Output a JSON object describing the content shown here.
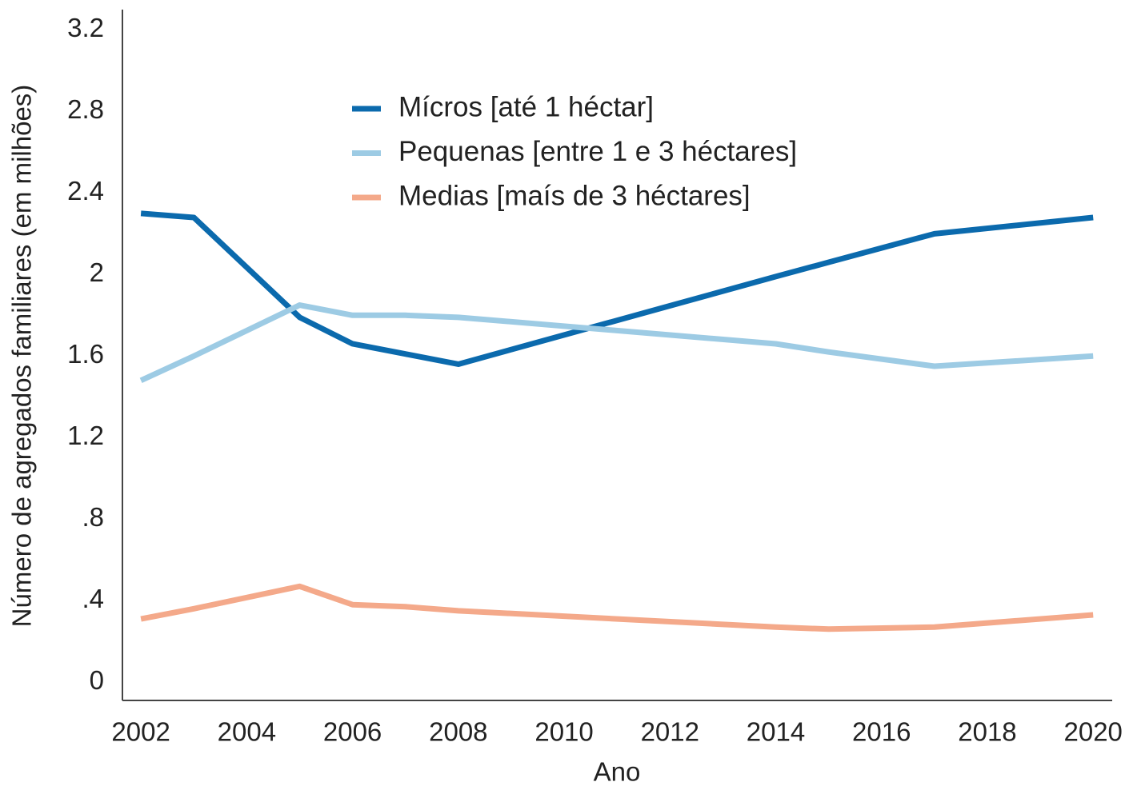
{
  "chart_data": {
    "type": "line",
    "x_label": "Ano",
    "y_label": "Número de agregados familiares (em milhões)",
    "x": [
      2002,
      2003,
      2005,
      2006,
      2007,
      2008,
      2014,
      2015,
      2017,
      2020
    ],
    "series": [
      {
        "name": "Mícros [até 1 héctar]",
        "color": "#0b6aad",
        "values": [
          2.3,
          2.28,
          1.79,
          1.66,
          1.61,
          1.56,
          1.99,
          2.06,
          2.2,
          2.28
        ]
      },
      {
        "name": "Pequenas [entre 1 e 3 héctares]",
        "color": "#9dcbe4",
        "values": [
          1.48,
          1.6,
          1.85,
          1.8,
          1.8,
          1.79,
          1.66,
          1.62,
          1.55,
          1.6
        ]
      },
      {
        "name": "Medias [maís de 3 héctares]",
        "color": "#f4a98a",
        "values": [
          0.31,
          0.36,
          0.47,
          0.38,
          0.37,
          0.35,
          0.27,
          0.26,
          0.27,
          0.33
        ]
      }
    ],
    "xlim": [
      2001.65,
      2020.36
    ],
    "xticks": [
      2002,
      2004,
      2006,
      2008,
      2010,
      2012,
      2014,
      2016,
      2018,
      2020
    ],
    "ylim": [
      -0.09,
      3.3
    ],
    "yticks": [
      0,
      {
        "value": 0.4,
        "label": ".4"
      },
      {
        "value": 0.8,
        "label": ".8"
      },
      1.2,
      1.6,
      2,
      2.4,
      2.8,
      3.2
    ],
    "grid": false,
    "legend": "top"
  }
}
